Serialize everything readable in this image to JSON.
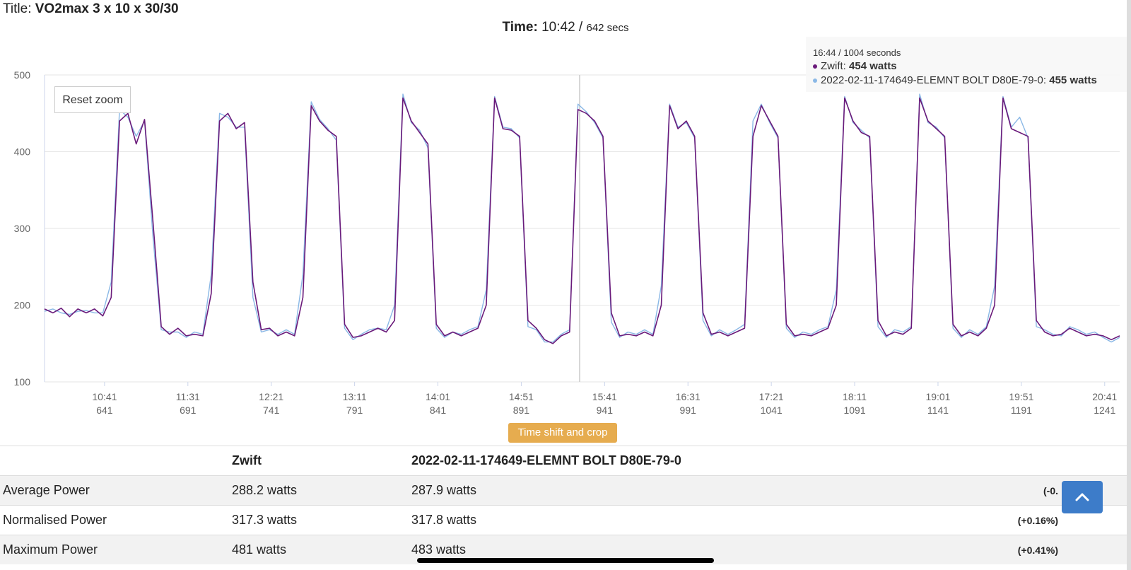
{
  "page": {
    "title_label": "Title:",
    "title_value": "VO2max 3 x 10 x 30/30",
    "time_label": "Time:",
    "time_value": "10:42",
    "time_sep": "/",
    "time_secs": "642 secs"
  },
  "toolbar": {
    "reset_zoom": "Reset zoom",
    "time_shift": "Time shift and crop"
  },
  "tooltip": {
    "header": "16:44 / 1004 seconds",
    "series1_name": "Zwift",
    "series1_value": "454 watts",
    "series2_name": "2022-02-11-174649-ELEMNT BOLT D80E-79-0",
    "series2_value": "455 watts"
  },
  "colors": {
    "series1": "#6a1a7a",
    "series2": "#8ab8e6",
    "grid": "#e6e6e6",
    "button": "#e6ac4f",
    "scroll_button": "#3d7cc9"
  },
  "chart_data": {
    "type": "line",
    "ylim": [
      100,
      500
    ],
    "y_ticks": [
      "500",
      "400",
      "300",
      "200",
      "100"
    ],
    "x_ticks": [
      {
        "time": "10:41",
        "secs": "641"
      },
      {
        "time": "11:31",
        "secs": "691"
      },
      {
        "time": "12:21",
        "secs": "741"
      },
      {
        "time": "13:11",
        "secs": "791"
      },
      {
        "time": "14:01",
        "secs": "841"
      },
      {
        "time": "14:51",
        "secs": "891"
      },
      {
        "time": "15:41",
        "secs": "941"
      },
      {
        "time": "16:31",
        "secs": "991"
      },
      {
        "time": "17:21",
        "secs": "1041"
      },
      {
        "time": "18:11",
        "secs": "1091"
      },
      {
        "time": "19:01",
        "secs": "1141"
      },
      {
        "time": "19:51",
        "secs": "1191"
      },
      {
        "time": "20:41",
        "secs": "1241"
      }
    ],
    "xlim": [
      605,
      1250
    ],
    "crosshair_x": 926,
    "series": [
      {
        "name": "Zwift",
        "x": [
          605,
          610,
          615,
          620,
          625,
          630,
          635,
          640,
          645,
          650,
          655,
          660,
          665,
          670,
          675,
          680,
          685,
          690,
          695,
          700,
          705,
          710,
          715,
          720,
          725,
          730,
          735,
          740,
          745,
          750,
          755,
          760,
          765,
          770,
          775,
          780,
          785,
          790,
          795,
          800,
          805,
          810,
          815,
          820,
          825,
          830,
          835,
          840,
          845,
          850,
          855,
          860,
          865,
          870,
          875,
          880,
          885,
          890,
          895,
          900,
          905,
          910,
          915,
          920,
          925,
          930,
          935,
          940,
          945,
          950,
          955,
          960,
          965,
          970,
          975,
          980,
          985,
          990,
          995,
          1000,
          1005,
          1010,
          1015,
          1020,
          1025,
          1030,
          1035,
          1040,
          1045,
          1050,
          1055,
          1060,
          1065,
          1070,
          1075,
          1080,
          1085,
          1090,
          1095,
          1100,
          1105,
          1110,
          1115,
          1120,
          1125,
          1130,
          1135,
          1140,
          1145,
          1150,
          1155,
          1160,
          1165,
          1170,
          1175,
          1180,
          1185,
          1190,
          1195,
          1200,
          1205,
          1210,
          1215,
          1220,
          1225,
          1230,
          1235,
          1240,
          1245,
          1250
        ],
        "values": [
          195,
          190,
          196,
          185,
          195,
          190,
          195,
          186,
          210,
          440,
          450,
          410,
          442,
          310,
          172,
          162,
          170,
          160,
          162,
          160,
          215,
          440,
          450,
          430,
          438,
          230,
          168,
          170,
          160,
          165,
          160,
          210,
          460,
          440,
          428,
          420,
          175,
          158,
          160,
          165,
          170,
          165,
          180,
          470,
          440,
          425,
          410,
          175,
          160,
          165,
          160,
          165,
          170,
          200,
          470,
          430,
          428,
          420,
          180,
          170,
          155,
          150,
          160,
          165,
          455,
          450,
          440,
          420,
          190,
          160,
          162,
          160,
          165,
          160,
          200,
          460,
          430,
          440,
          420,
          190,
          162,
          165,
          160,
          165,
          170,
          420,
          460,
          440,
          420,
          175,
          160,
          162,
          160,
          165,
          170,
          200,
          470,
          440,
          425,
          420,
          180,
          160,
          165,
          162,
          170,
          470,
          440,
          430,
          420,
          175,
          160,
          165,
          160,
          170,
          200,
          470,
          430,
          425,
          420,
          180,
          165,
          160,
          162,
          170,
          165,
          160,
          162,
          160,
          155,
          160
        ],
        "color": "#6a1a7a"
      },
      {
        "name": "2022-02-11-174649-ELEMNT BOLT D80E-79-0",
        "x": [
          605,
          610,
          615,
          620,
          625,
          630,
          635,
          640,
          645,
          650,
          655,
          660,
          665,
          670,
          675,
          680,
          685,
          690,
          695,
          700,
          705,
          710,
          715,
          720,
          725,
          730,
          735,
          740,
          745,
          750,
          755,
          760,
          765,
          770,
          775,
          780,
          785,
          790,
          795,
          800,
          805,
          810,
          815,
          820,
          825,
          830,
          835,
          840,
          845,
          850,
          855,
          860,
          865,
          870,
          875,
          880,
          885,
          890,
          895,
          900,
          905,
          910,
          915,
          920,
          925,
          930,
          935,
          940,
          945,
          950,
          955,
          960,
          965,
          970,
          975,
          980,
          985,
          990,
          995,
          1000,
          1005,
          1010,
          1015,
          1020,
          1025,
          1030,
          1035,
          1040,
          1045,
          1050,
          1055,
          1060,
          1065,
          1070,
          1075,
          1080,
          1085,
          1090,
          1095,
          1100,
          1105,
          1110,
          1115,
          1120,
          1125,
          1130,
          1135,
          1140,
          1145,
          1150,
          1155,
          1160,
          1165,
          1170,
          1175,
          1180,
          1185,
          1190,
          1195,
          1200,
          1205,
          1210,
          1215,
          1220,
          1225,
          1230,
          1235,
          1240,
          1245,
          1250
        ],
        "values": [
          192,
          195,
          190,
          188,
          192,
          193,
          190,
          190,
          230,
          455,
          445,
          420,
          440,
          290,
          168,
          165,
          165,
          158,
          165,
          162,
          240,
          450,
          445,
          432,
          432,
          210,
          165,
          168,
          162,
          168,
          162,
          240,
          465,
          442,
          430,
          415,
          170,
          155,
          162,
          168,
          170,
          168,
          200,
          475,
          438,
          428,
          405,
          170,
          158,
          165,
          162,
          168,
          172,
          220,
          472,
          432,
          430,
          418,
          172,
          168,
          152,
          152,
          162,
          168,
          462,
          452,
          438,
          418,
          178,
          158,
          165,
          162,
          168,
          162,
          225,
          462,
          432,
          438,
          418,
          180,
          160,
          168,
          162,
          168,
          175,
          440,
          462,
          438,
          418,
          170,
          158,
          165,
          162,
          168,
          172,
          220,
          472,
          438,
          428,
          418,
          172,
          158,
          168,
          165,
          172,
          475,
          438,
          432,
          418,
          170,
          158,
          168,
          162,
          172,
          225,
          472,
          432,
          445,
          418,
          172,
          168,
          162,
          160,
          172,
          168,
          162,
          165,
          158,
          152,
          158
        ],
        "color": "#8ab8e6"
      }
    ]
  },
  "table": {
    "headers": [
      "",
      "Zwift",
      "2022-02-11-174649-ELEMNT BOLT D80E-79-0",
      ""
    ],
    "rows": [
      {
        "label": "Average Power",
        "v1": "288.2 watts",
        "v2": "287.9 watts",
        "diff": "(-0."
      },
      {
        "label": "Normalised Power",
        "v1": "317.3 watts",
        "v2": "317.8 watts",
        "diff": "(+0.16%)"
      },
      {
        "label": "Maximum Power",
        "v1": "481 watts",
        "v2": "483 watts",
        "diff": "(+0.41%)"
      }
    ]
  }
}
